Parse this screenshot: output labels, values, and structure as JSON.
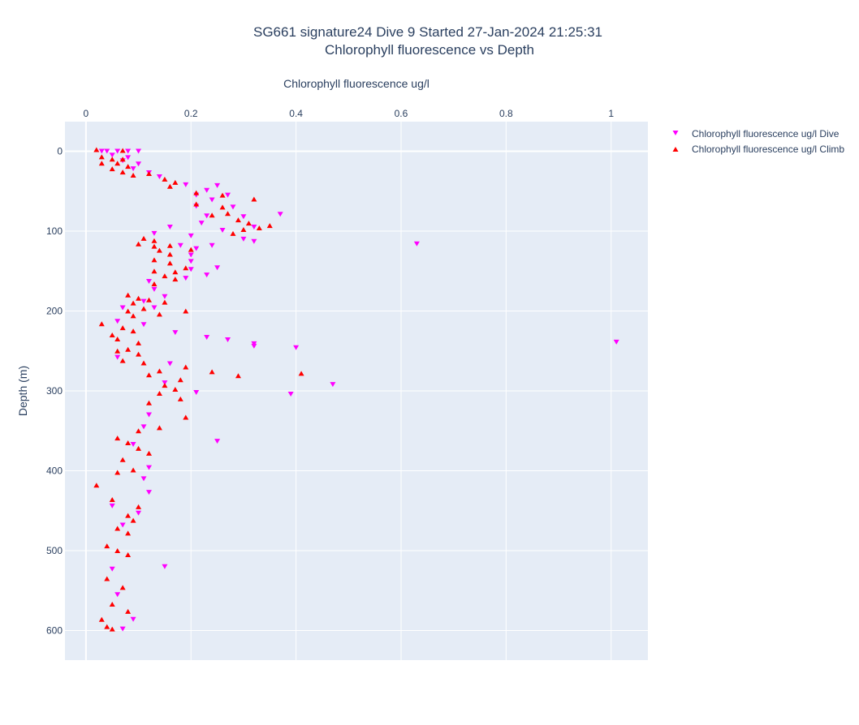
{
  "chart_data": {
    "type": "scatter",
    "title": "SG661 signature24 Dive 9 Started 27-Jan-2024 21:25:31",
    "subtitle": "Chlorophyll fluorescence vs Depth",
    "xlabel": "Chlorophyll fluorescence ug/l",
    "ylabel": "Depth (m)",
    "xlim": [
      -0.04,
      1.07
    ],
    "ylim": [
      637,
      -37
    ],
    "x_ticks": [
      0,
      0.2,
      0.4,
      0.6,
      0.8,
      1
    ],
    "x_tick_labels": [
      "0",
      "0.2",
      "0.4",
      "0.6",
      "0.8",
      "1"
    ],
    "y_ticks": [
      0,
      100,
      200,
      300,
      400,
      500,
      600
    ],
    "y_tick_labels": [
      "0",
      "100",
      "200",
      "300",
      "400",
      "500",
      "600"
    ],
    "x_axis_position": "top",
    "grid": true,
    "legend_position": "top-right",
    "series": [
      {
        "name": "Chlorophyll fluorescence ug/l Dive",
        "marker": "triangle-down",
        "color": "#ff00ff",
        "points": [
          [
            0.03,
            0
          ],
          [
            0.04,
            0
          ],
          [
            0.06,
            0
          ],
          [
            0.08,
            0
          ],
          [
            0.1,
            0
          ],
          [
            0.05,
            5
          ],
          [
            0.08,
            8
          ],
          [
            0.07,
            12
          ],
          [
            0.1,
            16
          ],
          [
            0.09,
            22
          ],
          [
            0.12,
            27
          ],
          [
            0.14,
            32
          ],
          [
            0.19,
            42
          ],
          [
            0.25,
            43
          ],
          [
            0.23,
            49
          ],
          [
            0.21,
            55
          ],
          [
            0.27,
            55
          ],
          [
            0.24,
            61
          ],
          [
            0.28,
            70
          ],
          [
            0.21,
            69
          ],
          [
            0.37,
            79
          ],
          [
            0.23,
            81
          ],
          [
            0.3,
            82
          ],
          [
            0.22,
            90
          ],
          [
            0.32,
            95
          ],
          [
            0.16,
            95
          ],
          [
            0.26,
            99
          ],
          [
            0.13,
            103
          ],
          [
            0.2,
            106
          ],
          [
            0.3,
            110
          ],
          [
            0.32,
            113
          ],
          [
            0.63,
            116
          ],
          [
            0.18,
            118
          ],
          [
            0.24,
            118
          ],
          [
            0.21,
            122
          ],
          [
            0.2,
            130
          ],
          [
            0.2,
            138
          ],
          [
            0.25,
            146
          ],
          [
            0.2,
            148
          ],
          [
            0.23,
            155
          ],
          [
            0.19,
            159
          ],
          [
            0.12,
            163
          ],
          [
            0.13,
            173
          ],
          [
            0.15,
            182
          ],
          [
            0.11,
            188
          ],
          [
            0.07,
            196
          ],
          [
            0.13,
            196
          ],
          [
            0.06,
            213
          ],
          [
            0.11,
            217
          ],
          [
            0.17,
            227
          ],
          [
            0.23,
            233
          ],
          [
            0.27,
            236
          ],
          [
            0.32,
            241
          ],
          [
            0.32,
            244
          ],
          [
            1.01,
            239
          ],
          [
            0.4,
            246
          ],
          [
            0.06,
            258
          ],
          [
            0.16,
            266
          ],
          [
            0.15,
            290
          ],
          [
            0.47,
            292
          ],
          [
            0.21,
            302
          ],
          [
            0.39,
            304
          ],
          [
            0.12,
            330
          ],
          [
            0.11,
            345
          ],
          [
            0.25,
            363
          ],
          [
            0.09,
            367
          ],
          [
            0.12,
            396
          ],
          [
            0.11,
            410
          ],
          [
            0.12,
            427
          ],
          [
            0.05,
            444
          ],
          [
            0.1,
            453
          ],
          [
            0.07,
            468
          ],
          [
            0.15,
            520
          ],
          [
            0.05,
            523
          ],
          [
            0.06,
            555
          ],
          [
            0.09,
            586
          ],
          [
            0.07,
            598
          ]
        ]
      },
      {
        "name": "Chlorophyll fluorescence ug/l Climb",
        "marker": "triangle-up",
        "color": "#ff0000",
        "points": [
          [
            0.02,
            -2
          ],
          [
            0.07,
            -1
          ],
          [
            0.03,
            7
          ],
          [
            0.05,
            10
          ],
          [
            0.07,
            10
          ],
          [
            0.03,
            15
          ],
          [
            0.06,
            15
          ],
          [
            0.08,
            19
          ],
          [
            0.05,
            22
          ],
          [
            0.07,
            26
          ],
          [
            0.09,
            30
          ],
          [
            0.12,
            28
          ],
          [
            0.15,
            35
          ],
          [
            0.17,
            39
          ],
          [
            0.16,
            44
          ],
          [
            0.21,
            52
          ],
          [
            0.26,
            55
          ],
          [
            0.21,
            66
          ],
          [
            0.26,
            70
          ],
          [
            0.32,
            60
          ],
          [
            0.27,
            78
          ],
          [
            0.24,
            80
          ],
          [
            0.29,
            86
          ],
          [
            0.31,
            90
          ],
          [
            0.33,
            96
          ],
          [
            0.35,
            93
          ],
          [
            0.3,
            98
          ],
          [
            0.28,
            103
          ],
          [
            0.11,
            109
          ],
          [
            0.13,
            112
          ],
          [
            0.1,
            116
          ],
          [
            0.13,
            119
          ],
          [
            0.16,
            118
          ],
          [
            0.14,
            124
          ],
          [
            0.2,
            123
          ],
          [
            0.16,
            129
          ],
          [
            0.13,
            136
          ],
          [
            0.16,
            140
          ],
          [
            0.19,
            146
          ],
          [
            0.13,
            150
          ],
          [
            0.17,
            151
          ],
          [
            0.15,
            156
          ],
          [
            0.17,
            160
          ],
          [
            0.13,
            166
          ],
          [
            0.08,
            180
          ],
          [
            0.1,
            184
          ],
          [
            0.12,
            186
          ],
          [
            0.15,
            189
          ],
          [
            0.09,
            190
          ],
          [
            0.11,
            197
          ],
          [
            0.08,
            200
          ],
          [
            0.19,
            200
          ],
          [
            0.14,
            204
          ],
          [
            0.09,
            206
          ],
          [
            0.03,
            216
          ],
          [
            0.07,
            221
          ],
          [
            0.09,
            225
          ],
          [
            0.05,
            230
          ],
          [
            0.06,
            235
          ],
          [
            0.1,
            240
          ],
          [
            0.08,
            248
          ],
          [
            0.06,
            250
          ],
          [
            0.1,
            254
          ],
          [
            0.07,
            262
          ],
          [
            0.11,
            265
          ],
          [
            0.19,
            270
          ],
          [
            0.14,
            275
          ],
          [
            0.24,
            276
          ],
          [
            0.41,
            278
          ],
          [
            0.29,
            281
          ],
          [
            0.12,
            280
          ],
          [
            0.18,
            286
          ],
          [
            0.15,
            293
          ],
          [
            0.17,
            298
          ],
          [
            0.14,
            303
          ],
          [
            0.18,
            310
          ],
          [
            0.12,
            315
          ],
          [
            0.19,
            333
          ],
          [
            0.14,
            346
          ],
          [
            0.1,
            350
          ],
          [
            0.06,
            359
          ],
          [
            0.08,
            365
          ],
          [
            0.1,
            372
          ],
          [
            0.12,
            378
          ],
          [
            0.07,
            386
          ],
          [
            0.09,
            399
          ],
          [
            0.06,
            402
          ],
          [
            0.02,
            418
          ],
          [
            0.05,
            436
          ],
          [
            0.1,
            445
          ],
          [
            0.08,
            456
          ],
          [
            0.09,
            462
          ],
          [
            0.06,
            472
          ],
          [
            0.08,
            478
          ],
          [
            0.04,
            494
          ],
          [
            0.06,
            500
          ],
          [
            0.08,
            505
          ],
          [
            0.04,
            535
          ],
          [
            0.07,
            546
          ],
          [
            0.05,
            567
          ],
          [
            0.08,
            576
          ],
          [
            0.03,
            586
          ],
          [
            0.04,
            595
          ],
          [
            0.05,
            598
          ]
        ]
      }
    ]
  }
}
